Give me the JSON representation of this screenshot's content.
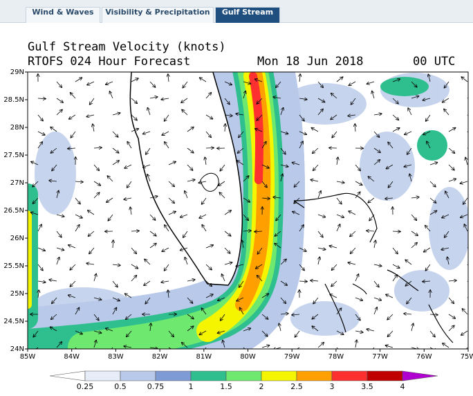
{
  "tabs": [
    "Wind & Waves",
    "Visibility & Precipitation",
    "Gulf Stream"
  ],
  "active_tab": 2,
  "title": "Gulf Stream Velocity (knots)",
  "subtitle": "RTOFS 024 Hour Forecast",
  "date": "Mon 18 Jun 2018",
  "time": "00 UTC",
  "lat_labels": [
    "29N",
    "28.5N",
    "28N",
    "27.5N",
    "27N",
    "26.5N",
    "26N",
    "25.5N",
    "25N",
    "24.5N",
    "24N"
  ],
  "lon_labels": [
    "85W",
    "84W",
    "83W",
    "82W",
    "81W",
    "80W",
    "79W",
    "78W",
    "77W",
    "76W",
    "75W"
  ],
  "colorbar": {
    "labels": [
      0.25,
      0.5,
      0.75,
      1,
      1.5,
      2,
      2.5,
      3,
      3.5,
      4
    ],
    "colors": [
      "#ffffff",
      "#e6ecf8",
      "#b9c9e9",
      "#7f9bd6",
      "#2fbf8f",
      "#6fe86f",
      "#f5f500",
      "#ffa000",
      "#ff3030",
      "#c00000",
      "#b000d0"
    ]
  }
}
